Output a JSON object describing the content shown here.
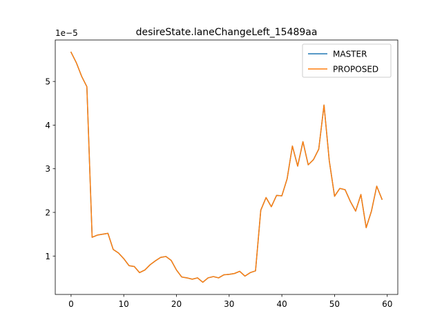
{
  "chart_data": {
    "type": "line",
    "title": "desireState.laneChangeLeft_15489aa",
    "xlabel": "",
    "ylabel": "",
    "y_offset_label": "1e−5",
    "xlim": [
      -3,
      62
    ],
    "ylim": [
      1.2e-06,
      5.95e-05
    ],
    "x_ticks": [
      0,
      10,
      20,
      30,
      40,
      50,
      60
    ],
    "x_tick_labels": [
      "0",
      "10",
      "20",
      "30",
      "40",
      "50",
      "60"
    ],
    "y_ticks": [
      1e-05,
      2e-05,
      3e-05,
      4e-05,
      5e-05
    ],
    "y_tick_labels": [
      "1",
      "2",
      "3",
      "4",
      "5"
    ],
    "grid": false,
    "legend_position": "top-right",
    "x": [
      0,
      1,
      2,
      3,
      4,
      5,
      6,
      7,
      8,
      9,
      10,
      11,
      12,
      13,
      14,
      15,
      16,
      17,
      18,
      19,
      20,
      21,
      22,
      23,
      24,
      25,
      26,
      27,
      28,
      29,
      30,
      31,
      32,
      33,
      34,
      35,
      36,
      37,
      38,
      39,
      40,
      41,
      42,
      43,
      44,
      45,
      46,
      47,
      48,
      49,
      50,
      51,
      52,
      53,
      54,
      55,
      56,
      57,
      58,
      59
    ],
    "series": [
      {
        "name": "MASTER",
        "color": "#1f77b4",
        "values": [
          5.67e-05,
          5.43e-05,
          5.12e-05,
          4.88e-05,
          1.43e-05,
          1.48e-05,
          1.5e-05,
          1.52e-05,
          1.15e-05,
          1.07e-05,
          9.4e-06,
          7.8e-06,
          7.6e-06,
          6.2e-06,
          6.8e-06,
          8e-06,
          8.9e-06,
          9.7e-06,
          9.9e-06,
          9e-06,
          6.8e-06,
          5.2e-06,
          5e-06,
          4.7e-06,
          5e-06,
          4e-06,
          5e-06,
          5.3e-06,
          5e-06,
          5.7e-06,
          5.8e-06,
          6e-06,
          6.5e-06,
          5.4e-06,
          6.2e-06,
          6.6e-06,
          2.05e-05,
          2.34e-05,
          2.13e-05,
          2.39e-05,
          2.38e-05,
          2.77e-05,
          3.52e-05,
          3.06e-05,
          3.62e-05,
          3.09e-05,
          3.21e-05,
          3.45e-05,
          4.46e-05,
          3.18e-05,
          2.37e-05,
          2.55e-05,
          2.52e-05,
          2.25e-05,
          2.03e-05,
          2.41e-05,
          1.65e-05,
          2.03e-05,
          2.6e-05,
          2.3e-05
        ]
      },
      {
        "name": "PROPOSED",
        "color": "#ff7f0e",
        "values": [
          5.67e-05,
          5.43e-05,
          5.12e-05,
          4.88e-05,
          1.43e-05,
          1.48e-05,
          1.5e-05,
          1.52e-05,
          1.15e-05,
          1.07e-05,
          9.4e-06,
          7.8e-06,
          7.6e-06,
          6.2e-06,
          6.8e-06,
          8e-06,
          8.9e-06,
          9.7e-06,
          9.9e-06,
          9e-06,
          6.8e-06,
          5.2e-06,
          5e-06,
          4.7e-06,
          5e-06,
          4e-06,
          5e-06,
          5.3e-06,
          5e-06,
          5.7e-06,
          5.8e-06,
          6e-06,
          6.5e-06,
          5.4e-06,
          6.2e-06,
          6.6e-06,
          2.05e-05,
          2.34e-05,
          2.13e-05,
          2.39e-05,
          2.38e-05,
          2.77e-05,
          3.52e-05,
          3.06e-05,
          3.62e-05,
          3.09e-05,
          3.21e-05,
          3.45e-05,
          4.46e-05,
          3.18e-05,
          2.37e-05,
          2.55e-05,
          2.52e-05,
          2.25e-05,
          2.03e-05,
          2.41e-05,
          1.65e-05,
          2.03e-05,
          2.6e-05,
          2.3e-05
        ]
      }
    ]
  }
}
